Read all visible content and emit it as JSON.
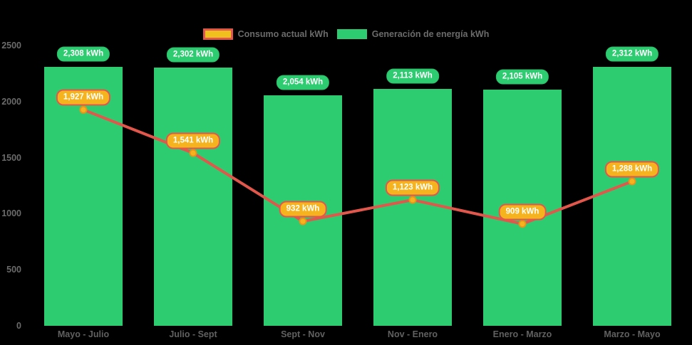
{
  "chart_data": {
    "type": "bar+line",
    "title": "",
    "xlabel": "",
    "ylabel": "",
    "categories": [
      "Mayo - Julio",
      "Julio - Sept",
      "Sept - Nov",
      "Nov - Enero",
      "Enero - Marzo",
      "Marzo - Mayo"
    ],
    "series": [
      {
        "name": "Consumo actual kWh",
        "type": "line",
        "values": [
          1927,
          1541,
          932,
          1123,
          909,
          1288
        ],
        "labels": [
          "1,927 kWh",
          "1,541 kWh",
          "932 kWh",
          "1,123 kWh",
          "909 kWh",
          "1,288 kWh"
        ],
        "line_color": "#e2574b",
        "point_fill": "#f5b41e",
        "point_border": "#e8941a",
        "label_bg": "#f5b41e",
        "label_border": "#e2574b"
      },
      {
        "name": "Generación de energía kWh",
        "type": "bar",
        "values": [
          2308,
          2302,
          2054,
          2113,
          2105,
          2312
        ],
        "labels": [
          "2,308 kWh",
          "2,302 kWh",
          "2,054 kWh",
          "2,113 kWh",
          "2,105 kWh",
          "2,312 kWh"
        ],
        "bar_color": "#2ecc71",
        "label_bg": "#2ecc71",
        "label_border": "#29bd68"
      }
    ],
    "yticks": [
      "0",
      "500",
      "1000",
      "1500",
      "2000",
      "2500"
    ],
    "ytick_values": [
      0,
      500,
      1000,
      1500,
      2000,
      2500
    ],
    "ylim": [
      0,
      2500
    ],
    "grid": false,
    "legend_position": "top-center",
    "background": "#000000",
    "text_color": "#6b6b6b"
  }
}
